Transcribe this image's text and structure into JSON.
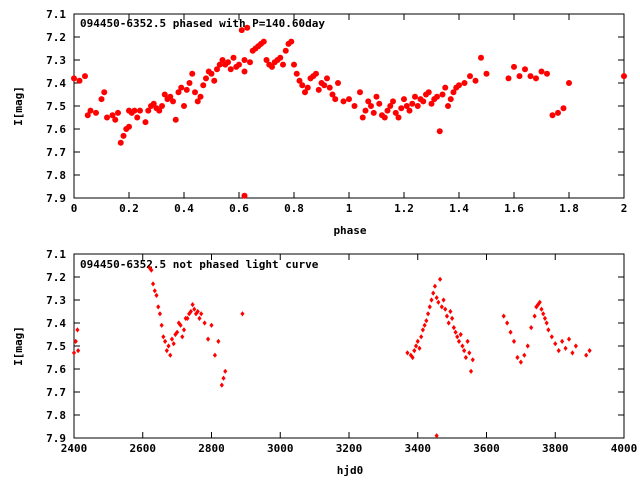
{
  "chart_data": [
    {
      "type": "scatter",
      "title": "094450-6352.5 phased with P=140.60day",
      "xlabel": "phase",
      "ylabel": "I[mag]",
      "xlim": [
        0,
        2
      ],
      "ylim": [
        7.9,
        7.1
      ],
      "y_inverted": true,
      "xticks": [
        "0",
        "0.2",
        "0.4",
        "0.6",
        "0.8",
        "1",
        "1.2",
        "1.4",
        "1.6",
        "1.8",
        "2"
      ],
      "yticks": [
        "7.1",
        "7.2",
        "7.3",
        "7.4",
        "7.5",
        "7.6",
        "7.7",
        "7.8",
        "7.9"
      ],
      "marker": "filled-circle",
      "color": "#ff0000",
      "x": [
        0.0,
        0.02,
        0.04,
        0.05,
        0.06,
        0.08,
        0.1,
        0.11,
        0.12,
        0.14,
        0.15,
        0.16,
        0.17,
        0.18,
        0.19,
        0.2,
        0.2,
        0.21,
        0.22,
        0.23,
        0.24,
        0.26,
        0.27,
        0.28,
        0.29,
        0.3,
        0.31,
        0.32,
        0.33,
        0.34,
        0.35,
        0.36,
        0.37,
        0.38,
        0.39,
        0.4,
        0.41,
        0.42,
        0.43,
        0.44,
        0.45,
        0.46,
        0.47,
        0.48,
        0.49,
        0.5,
        0.51,
        0.52,
        0.53,
        0.54,
        0.55,
        0.56,
        0.57,
        0.58,
        0.59,
        0.6,
        0.61,
        0.62,
        0.62,
        0.63,
        0.64,
        0.65,
        0.66,
        0.67,
        0.68,
        0.69,
        0.7,
        0.71,
        0.72,
        0.73,
        0.74,
        0.75,
        0.76,
        0.77,
        0.78,
        0.79,
        0.8,
        0.81,
        0.82,
        0.83,
        0.84,
        0.85,
        0.86,
        0.87,
        0.88,
        0.89,
        0.9,
        0.91,
        0.92,
        0.93,
        0.94,
        0.95,
        0.96,
        0.98,
        1.0,
        1.02,
        1.04,
        1.05,
        1.06,
        1.07,
        1.08,
        1.09,
        1.1,
        1.11,
        1.12,
        1.13,
        1.14,
        1.15,
        1.16,
        1.17,
        1.18,
        1.19,
        1.2,
        1.21,
        1.22,
        1.23,
        1.24,
        1.25,
        1.26,
        1.27,
        1.28,
        1.29,
        1.3,
        1.31,
        1.32,
        1.33,
        1.34,
        1.35,
        1.36,
        1.37,
        1.38,
        1.39,
        1.4,
        1.42,
        1.44,
        1.46,
        1.48,
        1.5,
        1.58,
        1.6,
        1.62,
        1.64,
        1.66,
        1.68,
        1.7,
        1.72,
        1.74,
        1.76,
        1.78,
        1.8,
        2.0
      ],
      "y": [
        7.38,
        7.39,
        7.37,
        7.54,
        7.52,
        7.53,
        7.47,
        7.44,
        7.55,
        7.54,
        7.56,
        7.53,
        7.66,
        7.63,
        7.6,
        7.59,
        7.52,
        7.53,
        7.52,
        7.55,
        7.52,
        7.57,
        7.52,
        7.5,
        7.49,
        7.51,
        7.52,
        7.5,
        7.45,
        7.47,
        7.46,
        7.48,
        7.56,
        7.44,
        7.42,
        7.5,
        7.43,
        7.4,
        7.36,
        7.44,
        7.48,
        7.46,
        7.41,
        7.38,
        7.35,
        7.36,
        7.39,
        7.34,
        7.32,
        7.3,
        7.32,
        7.31,
        7.34,
        7.29,
        7.33,
        7.32,
        7.17,
        7.35,
        7.3,
        7.16,
        7.31,
        7.26,
        7.25,
        7.24,
        7.23,
        7.22,
        7.3,
        7.32,
        7.33,
        7.31,
        7.3,
        7.29,
        7.32,
        7.26,
        7.23,
        7.22,
        7.32,
        7.36,
        7.39,
        7.41,
        7.44,
        7.42,
        7.38,
        7.37,
        7.36,
        7.43,
        7.4,
        7.41,
        7.38,
        7.42,
        7.45,
        7.47,
        7.4,
        7.48,
        7.47,
        7.5,
        7.44,
        7.55,
        7.52,
        7.48,
        7.5,
        7.53,
        7.46,
        7.49,
        7.54,
        7.55,
        7.52,
        7.5,
        7.48,
        7.53,
        7.55,
        7.51,
        7.47,
        7.5,
        7.52,
        7.49,
        7.46,
        7.5,
        7.47,
        7.48,
        7.45,
        7.44,
        7.49,
        7.47,
        7.46,
        7.61,
        7.45,
        7.42,
        7.5,
        7.47,
        7.44,
        7.42,
        7.41,
        7.4,
        7.37,
        7.39,
        7.29,
        7.36,
        7.38,
        7.33,
        7.37,
        7.34,
        7.37,
        7.38,
        7.35,
        7.36,
        7.54,
        7.53,
        7.51,
        7.4,
        7.37
      ],
      "outliers_x": [
        0.62
      ],
      "outliers_y": [
        7.89
      ]
    },
    {
      "type": "scatter",
      "title": "094450-6352.5 not phased light curve",
      "xlabel": "hjd0",
      "ylabel": "I[mag]",
      "xlim": [
        2400,
        4000
      ],
      "ylim": [
        7.9,
        7.1
      ],
      "y_inverted": true,
      "xticks": [
        "2400",
        "2600",
        "2800",
        "3000",
        "3200",
        "3400",
        "3600",
        "3800",
        "4000"
      ],
      "yticks": [
        "7.1",
        "7.2",
        "7.3",
        "7.4",
        "7.5",
        "7.6",
        "7.7",
        "7.8",
        "7.9"
      ],
      "marker": "filled-diamond",
      "color": "#ff0000",
      "x": [
        2400,
        2405,
        2410,
        2412,
        2620,
        2625,
        2630,
        2635,
        2640,
        2645,
        2650,
        2655,
        2660,
        2665,
        2670,
        2675,
        2680,
        2685,
        2690,
        2695,
        2700,
        2705,
        2710,
        2715,
        2720,
        2725,
        2730,
        2735,
        2740,
        2745,
        2750,
        2755,
        2760,
        2765,
        2770,
        2780,
        2790,
        2800,
        2810,
        2820,
        2830,
        2835,
        2840,
        2890,
        3370,
        3380,
        3385,
        3390,
        3395,
        3400,
        3405,
        3410,
        3415,
        3420,
        3425,
        3430,
        3435,
        3440,
        3445,
        3450,
        3455,
        3460,
        3465,
        3470,
        3475,
        3480,
        3485,
        3490,
        3495,
        3500,
        3505,
        3510,
        3515,
        3520,
        3525,
        3530,
        3535,
        3540,
        3545,
        3550,
        3555,
        3560,
        3650,
        3660,
        3670,
        3680,
        3690,
        3700,
        3710,
        3720,
        3730,
        3740,
        3745,
        3750,
        3755,
        3760,
        3765,
        3770,
        3775,
        3780,
        3790,
        3800,
        3810,
        3820,
        3830,
        3840,
        3850,
        3860,
        3890,
        3900
      ],
      "y": [
        7.53,
        7.48,
        7.43,
        7.52,
        7.16,
        7.17,
        7.23,
        7.26,
        7.28,
        7.33,
        7.36,
        7.41,
        7.46,
        7.48,
        7.52,
        7.5,
        7.54,
        7.47,
        7.49,
        7.45,
        7.44,
        7.4,
        7.41,
        7.46,
        7.43,
        7.38,
        7.38,
        7.36,
        7.35,
        7.32,
        7.34,
        7.36,
        7.35,
        7.38,
        7.36,
        7.4,
        7.47,
        7.41,
        7.54,
        7.48,
        7.67,
        7.64,
        7.61,
        7.36,
        7.53,
        7.54,
        7.55,
        7.52,
        7.5,
        7.48,
        7.51,
        7.46,
        7.43,
        7.41,
        7.39,
        7.36,
        7.33,
        7.3,
        7.27,
        7.24,
        7.29,
        7.31,
        7.21,
        7.33,
        7.3,
        7.34,
        7.37,
        7.4,
        7.35,
        7.38,
        7.42,
        7.44,
        7.46,
        7.48,
        7.45,
        7.5,
        7.52,
        7.55,
        7.48,
        7.53,
        7.61,
        7.56,
        7.37,
        7.4,
        7.44,
        7.48,
        7.55,
        7.57,
        7.54,
        7.5,
        7.42,
        7.37,
        7.33,
        7.32,
        7.31,
        7.34,
        7.36,
        7.38,
        7.4,
        7.43,
        7.46,
        7.49,
        7.52,
        7.48,
        7.51,
        7.47,
        7.53,
        7.5,
        7.54,
        7.52
      ],
      "outliers_x": [
        3455
      ],
      "outliers_y": [
        7.89
      ]
    }
  ]
}
